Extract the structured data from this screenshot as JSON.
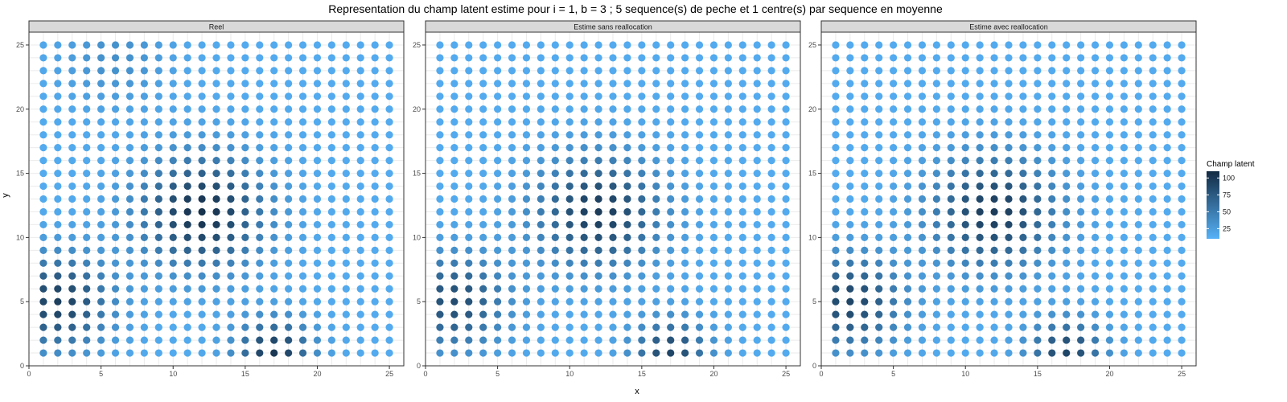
{
  "chart_data": {
    "type": "scatter",
    "title": "Representation du champ latent estime pour i = 1, b = 3 ; 5 sequence(s) de peche et 1 centre(s) par sequence en moyenne",
    "xlabel": "x",
    "ylabel": "y",
    "xlim": [
      0,
      26
    ],
    "ylim": [
      0,
      26
    ],
    "x_ticks": [
      0,
      5,
      10,
      15,
      20,
      25
    ],
    "y_ticks": [
      0,
      5,
      10,
      15,
      20,
      25
    ],
    "grid": true,
    "grid_x": [
      1,
      25
    ],
    "grid_y": [
      1,
      25
    ],
    "panels": [
      {
        "title": "Reel",
        "centers": [
          [
            12,
            12,
            90,
            3.0
          ],
          [
            2,
            5,
            80,
            2.5
          ],
          [
            17,
            1,
            85,
            1.8
          ],
          [
            6,
            24,
            20,
            2.5
          ]
        ]
      },
      {
        "title": "Estime sans reallocation",
        "centers": [
          [
            12,
            12,
            82,
            3.0
          ],
          [
            2,
            5,
            70,
            2.5
          ],
          [
            17,
            1,
            75,
            1.8
          ]
        ]
      },
      {
        "title": "Estime avec reallocation",
        "centers": [
          [
            12,
            12,
            82,
            3.0
          ],
          [
            2,
            5,
            75,
            2.5
          ],
          [
            17,
            1,
            75,
            1.8
          ]
        ]
      }
    ],
    "field_base": 15,
    "legend": {
      "title": "Champ latent",
      "ticks": [
        25,
        50,
        75,
        100
      ],
      "range": [
        10,
        110
      ],
      "colors": [
        "#132b43",
        "#56b1f7"
      ],
      "position": "right"
    }
  }
}
